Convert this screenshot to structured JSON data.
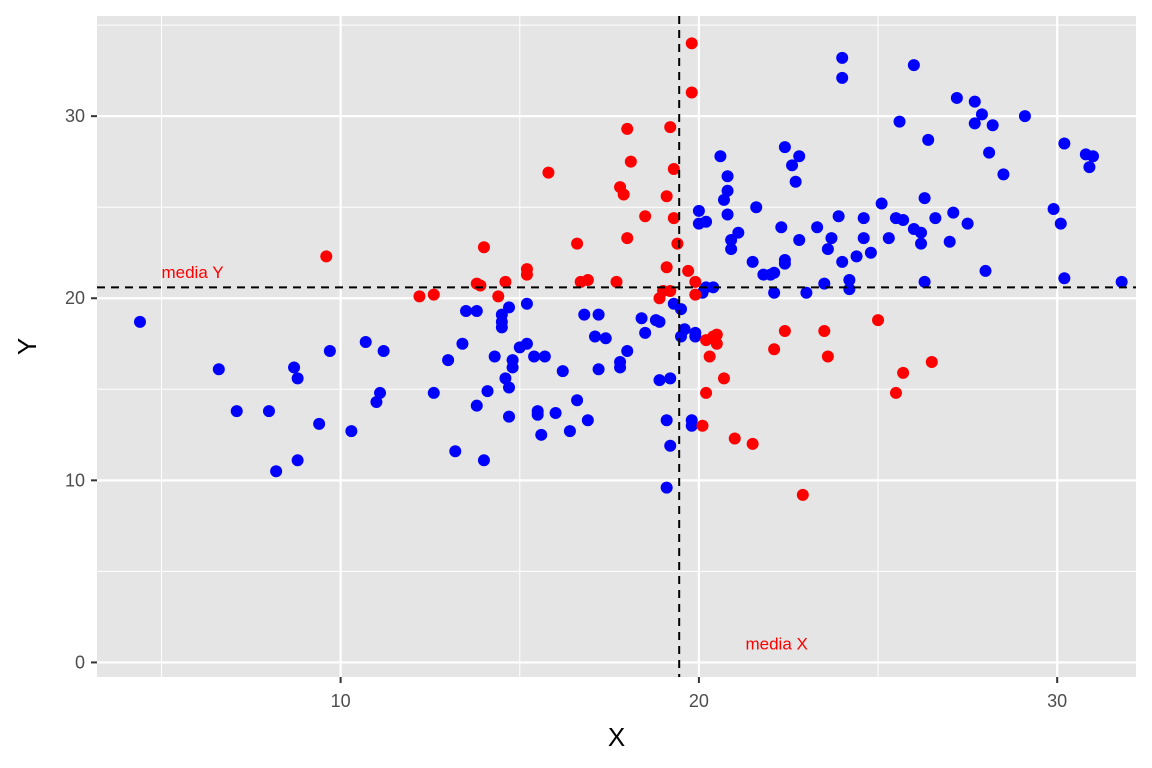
{
  "chart_data": {
    "type": "scatter",
    "xlabel": "X",
    "ylabel": "Y",
    "xlim": [
      3.2,
      32.2
    ],
    "ylim": [
      -0.8,
      35.5
    ],
    "x_ticks": [
      10,
      20,
      30
    ],
    "y_ticks": [
      0,
      10,
      20,
      30
    ],
    "x_tick_labels": [
      "10",
      "20",
      "30"
    ],
    "y_tick_labels": [
      "0",
      "10",
      "20",
      "30"
    ],
    "grid": true,
    "colors": {
      "panel": "#e5e5e5",
      "grid": "#ffffff",
      "blue": "#0000ff",
      "red": "#ff0000",
      "reference_line": "#000000",
      "annotation": "#ff0000"
    },
    "reference_lines": {
      "vertical_x": 19.45,
      "horizontal_y": 20.6
    },
    "annotations": [
      {
        "text": "media Y",
        "x": 5.0,
        "y": 21.1
      },
      {
        "text": "media X",
        "x": 21.3,
        "y": 0.7
      }
    ],
    "series": [
      {
        "color": "blue",
        "points": [
          [
            4.4,
            18.7
          ],
          [
            6.6,
            16.1
          ],
          [
            7.1,
            13.8
          ],
          [
            8.0,
            13.8
          ],
          [
            8.2,
            10.5
          ],
          [
            8.7,
            16.2
          ],
          [
            8.8,
            15.6
          ],
          [
            8.8,
            11.1
          ],
          [
            9.4,
            13.1
          ],
          [
            9.7,
            17.1
          ],
          [
            10.3,
            12.7
          ],
          [
            10.7,
            17.6
          ],
          [
            11.0,
            14.3
          ],
          [
            11.1,
            14.8
          ],
          [
            11.2,
            17.1
          ],
          [
            12.6,
            14.8
          ],
          [
            13.0,
            16.6
          ],
          [
            13.2,
            11.6
          ],
          [
            13.4,
            17.5
          ],
          [
            13.5,
            19.3
          ],
          [
            13.8,
            14.1
          ],
          [
            13.8,
            19.3
          ],
          [
            14.0,
            11.1
          ],
          [
            14.1,
            14.9
          ],
          [
            14.3,
            16.8
          ],
          [
            14.5,
            18.4
          ],
          [
            14.5,
            18.7
          ],
          [
            14.5,
            19.1
          ],
          [
            14.6,
            15.6
          ],
          [
            14.7,
            15.1
          ],
          [
            14.7,
            19.5
          ],
          [
            14.7,
            13.5
          ],
          [
            14.8,
            16.2
          ],
          [
            14.8,
            16.6
          ],
          [
            15.0,
            17.3
          ],
          [
            15.2,
            17.5
          ],
          [
            15.2,
            19.7
          ],
          [
            15.4,
            16.8
          ],
          [
            15.5,
            13.8
          ],
          [
            15.5,
            13.6
          ],
          [
            15.6,
            12.5
          ],
          [
            15.7,
            16.8
          ],
          [
            16.0,
            13.7
          ],
          [
            16.2,
            16.0
          ],
          [
            16.4,
            12.7
          ],
          [
            16.6,
            14.4
          ],
          [
            16.8,
            19.1
          ],
          [
            16.9,
            13.3
          ],
          [
            17.1,
            17.9
          ],
          [
            17.2,
            16.1
          ],
          [
            17.2,
            19.1
          ],
          [
            17.4,
            17.8
          ],
          [
            17.8,
            16.2
          ],
          [
            17.8,
            16.5
          ],
          [
            18.0,
            17.1
          ],
          [
            18.4,
            18.9
          ],
          [
            18.5,
            18.1
          ],
          [
            18.8,
            18.8
          ],
          [
            18.9,
            15.5
          ],
          [
            18.9,
            18.7
          ],
          [
            19.1,
            13.3
          ],
          [
            19.1,
            9.6
          ],
          [
            19.2,
            11.9
          ],
          [
            19.2,
            15.6
          ],
          [
            19.3,
            19.7
          ],
          [
            19.5,
            17.9
          ],
          [
            19.5,
            19.4
          ],
          [
            19.6,
            18.3
          ],
          [
            19.8,
            13.3
          ],
          [
            19.8,
            13.0
          ],
          [
            19.9,
            17.9
          ],
          [
            19.9,
            18.1
          ],
          [
            20.0,
            24.1
          ],
          [
            20.0,
            24.8
          ],
          [
            20.1,
            20.3
          ],
          [
            20.2,
            24.2
          ],
          [
            20.2,
            20.6
          ],
          [
            20.4,
            20.6
          ],
          [
            20.6,
            27.8
          ],
          [
            20.7,
            25.4
          ],
          [
            20.8,
            26.7
          ],
          [
            20.8,
            24.6
          ],
          [
            20.8,
            25.9
          ],
          [
            20.9,
            23.2
          ],
          [
            20.9,
            22.7
          ],
          [
            21.1,
            23.6
          ],
          [
            21.5,
            22.0
          ],
          [
            21.6,
            25.0
          ],
          [
            21.8,
            21.3
          ],
          [
            22.0,
            21.3
          ],
          [
            22.1,
            21.4
          ],
          [
            22.1,
            20.3
          ],
          [
            22.3,
            23.9
          ],
          [
            22.4,
            28.3
          ],
          [
            22.4,
            22.1
          ],
          [
            22.4,
            21.9
          ],
          [
            22.6,
            27.3
          ],
          [
            22.7,
            26.4
          ],
          [
            22.8,
            27.8
          ],
          [
            22.8,
            23.2
          ],
          [
            23.0,
            20.3
          ],
          [
            23.3,
            23.9
          ],
          [
            23.5,
            20.8
          ],
          [
            23.6,
            22.7
          ],
          [
            23.7,
            23.3
          ],
          [
            23.9,
            24.5
          ],
          [
            24.0,
            22.0
          ],
          [
            24.0,
            33.2
          ],
          [
            24.0,
            32.1
          ],
          [
            24.2,
            20.5
          ],
          [
            24.2,
            21.0
          ],
          [
            24.4,
            22.3
          ],
          [
            24.6,
            24.4
          ],
          [
            24.6,
            23.3
          ],
          [
            24.8,
            22.5
          ],
          [
            25.1,
            25.2
          ],
          [
            25.3,
            23.3
          ],
          [
            25.5,
            24.4
          ],
          [
            25.6,
            29.7
          ],
          [
            25.7,
            24.3
          ],
          [
            26.0,
            32.8
          ],
          [
            26.0,
            23.8
          ],
          [
            26.2,
            23.6
          ],
          [
            26.2,
            23.0
          ],
          [
            26.3,
            25.5
          ],
          [
            26.3,
            20.9
          ],
          [
            26.4,
            28.7
          ],
          [
            26.6,
            24.4
          ],
          [
            27.0,
            23.1
          ],
          [
            27.1,
            24.7
          ],
          [
            27.2,
            31.0
          ],
          [
            27.5,
            24.1
          ],
          [
            27.7,
            30.8
          ],
          [
            27.7,
            29.6
          ],
          [
            27.9,
            30.1
          ],
          [
            28.0,
            21.5
          ],
          [
            28.1,
            28.0
          ],
          [
            28.2,
            29.5
          ],
          [
            28.5,
            26.8
          ],
          [
            29.1,
            30.0
          ],
          [
            29.9,
            24.9
          ],
          [
            30.1,
            24.1
          ],
          [
            30.2,
            21.1
          ],
          [
            30.2,
            28.5
          ],
          [
            30.8,
            27.9
          ],
          [
            30.9,
            27.2
          ],
          [
            31.0,
            27.8
          ],
          [
            31.8,
            20.9
          ]
        ]
      },
      {
        "color": "red",
        "points": [
          [
            9.6,
            22.3
          ],
          [
            12.2,
            20.1
          ],
          [
            12.6,
            20.2
          ],
          [
            13.8,
            20.8
          ],
          [
            13.9,
            20.7
          ],
          [
            14.0,
            22.8
          ],
          [
            14.4,
            20.1
          ],
          [
            14.6,
            20.9
          ],
          [
            15.2,
            21.6
          ],
          [
            15.2,
            21.3
          ],
          [
            15.8,
            26.9
          ],
          [
            16.6,
            23.0
          ],
          [
            16.7,
            20.9
          ],
          [
            16.9,
            21.0
          ],
          [
            17.7,
            20.9
          ],
          [
            17.8,
            26.1
          ],
          [
            17.9,
            25.7
          ],
          [
            18.0,
            23.3
          ],
          [
            18.0,
            29.3
          ],
          [
            18.1,
            27.5
          ],
          [
            18.5,
            24.5
          ],
          [
            18.9,
            20.0
          ],
          [
            19.0,
            20.4
          ],
          [
            19.1,
            25.6
          ],
          [
            19.1,
            21.7
          ],
          [
            19.2,
            20.4
          ],
          [
            19.2,
            29.4
          ],
          [
            19.3,
            24.4
          ],
          [
            19.3,
            27.1
          ],
          [
            19.4,
            23.0
          ],
          [
            19.7,
            21.5
          ],
          [
            19.8,
            34.0
          ],
          [
            19.8,
            31.3
          ],
          [
            19.9,
            20.9
          ],
          [
            19.9,
            20.2
          ],
          [
            20.1,
            13.0
          ],
          [
            20.2,
            14.8
          ],
          [
            20.2,
            17.7
          ],
          [
            20.3,
            16.8
          ],
          [
            20.4,
            17.9
          ],
          [
            20.5,
            18.0
          ],
          [
            20.5,
            17.5
          ],
          [
            20.7,
            15.6
          ],
          [
            21.0,
            12.3
          ],
          [
            21.5,
            12.0
          ],
          [
            22.1,
            17.2
          ],
          [
            22.4,
            18.2
          ],
          [
            22.9,
            9.2
          ],
          [
            23.5,
            18.2
          ],
          [
            23.6,
            16.8
          ],
          [
            25.0,
            18.8
          ],
          [
            25.5,
            14.8
          ],
          [
            25.7,
            15.9
          ],
          [
            26.5,
            16.5
          ]
        ]
      }
    ]
  }
}
